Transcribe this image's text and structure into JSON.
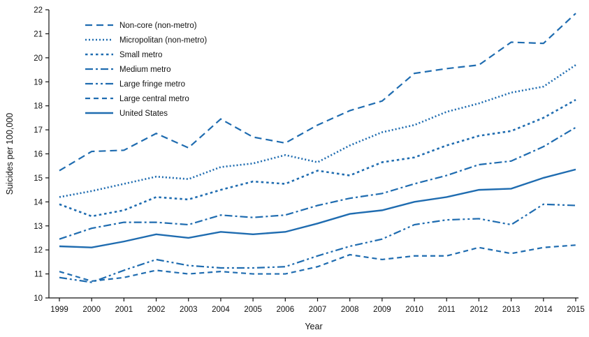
{
  "chart_data": {
    "type": "line",
    "title": "",
    "xlabel": "Year",
    "ylabel": "Suicides per 100,000",
    "ylim": [
      10,
      22
    ],
    "ytick_step": 1,
    "grid": false,
    "legend_position": "top-left",
    "line_color": "#1f6cb0",
    "x": [
      1999,
      2000,
      2001,
      2002,
      2003,
      2004,
      2005,
      2006,
      2007,
      2008,
      2009,
      2010,
      2011,
      2012,
      2013,
      2014,
      2015
    ],
    "series": [
      {
        "name": "Non-core (non-metro)",
        "dash": "10,6",
        "width": 2.2,
        "values": [
          15.3,
          16.1,
          16.15,
          16.85,
          16.25,
          17.45,
          16.7,
          16.45,
          17.2,
          17.8,
          18.2,
          19.35,
          19.55,
          19.7,
          20.65,
          20.6,
          21.85
        ]
      },
      {
        "name": "Micropolitan (non-metro)",
        "dash": "2,3",
        "width": 2.6,
        "values": [
          14.2,
          14.45,
          14.75,
          15.05,
          14.95,
          15.45,
          15.6,
          15.95,
          15.65,
          16.35,
          16.9,
          17.2,
          17.75,
          18.1,
          18.55,
          18.8,
          19.7
        ]
      },
      {
        "name": "Small metro",
        "dash": "3.5,4",
        "width": 2.6,
        "values": [
          13.9,
          13.4,
          13.65,
          14.2,
          14.1,
          14.5,
          14.85,
          14.75,
          15.3,
          15.1,
          15.65,
          15.85,
          16.35,
          16.75,
          16.95,
          17.5,
          18.25
        ]
      },
      {
        "name": "Medium metro",
        "dash": "11,4,3,4",
        "width": 2.2,
        "values": [
          12.45,
          12.9,
          13.15,
          13.15,
          13.05,
          13.45,
          13.35,
          13.45,
          13.85,
          14.15,
          14.35,
          14.75,
          15.1,
          15.55,
          15.7,
          16.3,
          17.1
        ]
      },
      {
        "name": "Large fringe metro",
        "dash": "11,4,3,4,3,4",
        "width": 2.2,
        "values": [
          10.85,
          10.65,
          11.15,
          11.6,
          11.35,
          11.25,
          11.25,
          11.3,
          11.75,
          12.15,
          12.45,
          13.05,
          13.25,
          13.3,
          13.05,
          13.9,
          13.85
        ]
      },
      {
        "name": "Large central metro",
        "dash": "7,5",
        "width": 2.2,
        "values": [
          11.1,
          10.7,
          10.85,
          11.15,
          11.0,
          11.1,
          11.0,
          11.0,
          11.3,
          11.8,
          11.6,
          11.75,
          11.75,
          12.1,
          11.85,
          12.1,
          12.2
        ]
      },
      {
        "name": "United States",
        "dash": "",
        "width": 2.4,
        "values": [
          12.15,
          12.1,
          12.35,
          12.65,
          12.5,
          12.75,
          12.65,
          12.75,
          13.1,
          13.5,
          13.65,
          14.0,
          14.2,
          14.5,
          14.55,
          15.0,
          15.35
        ]
      }
    ]
  }
}
